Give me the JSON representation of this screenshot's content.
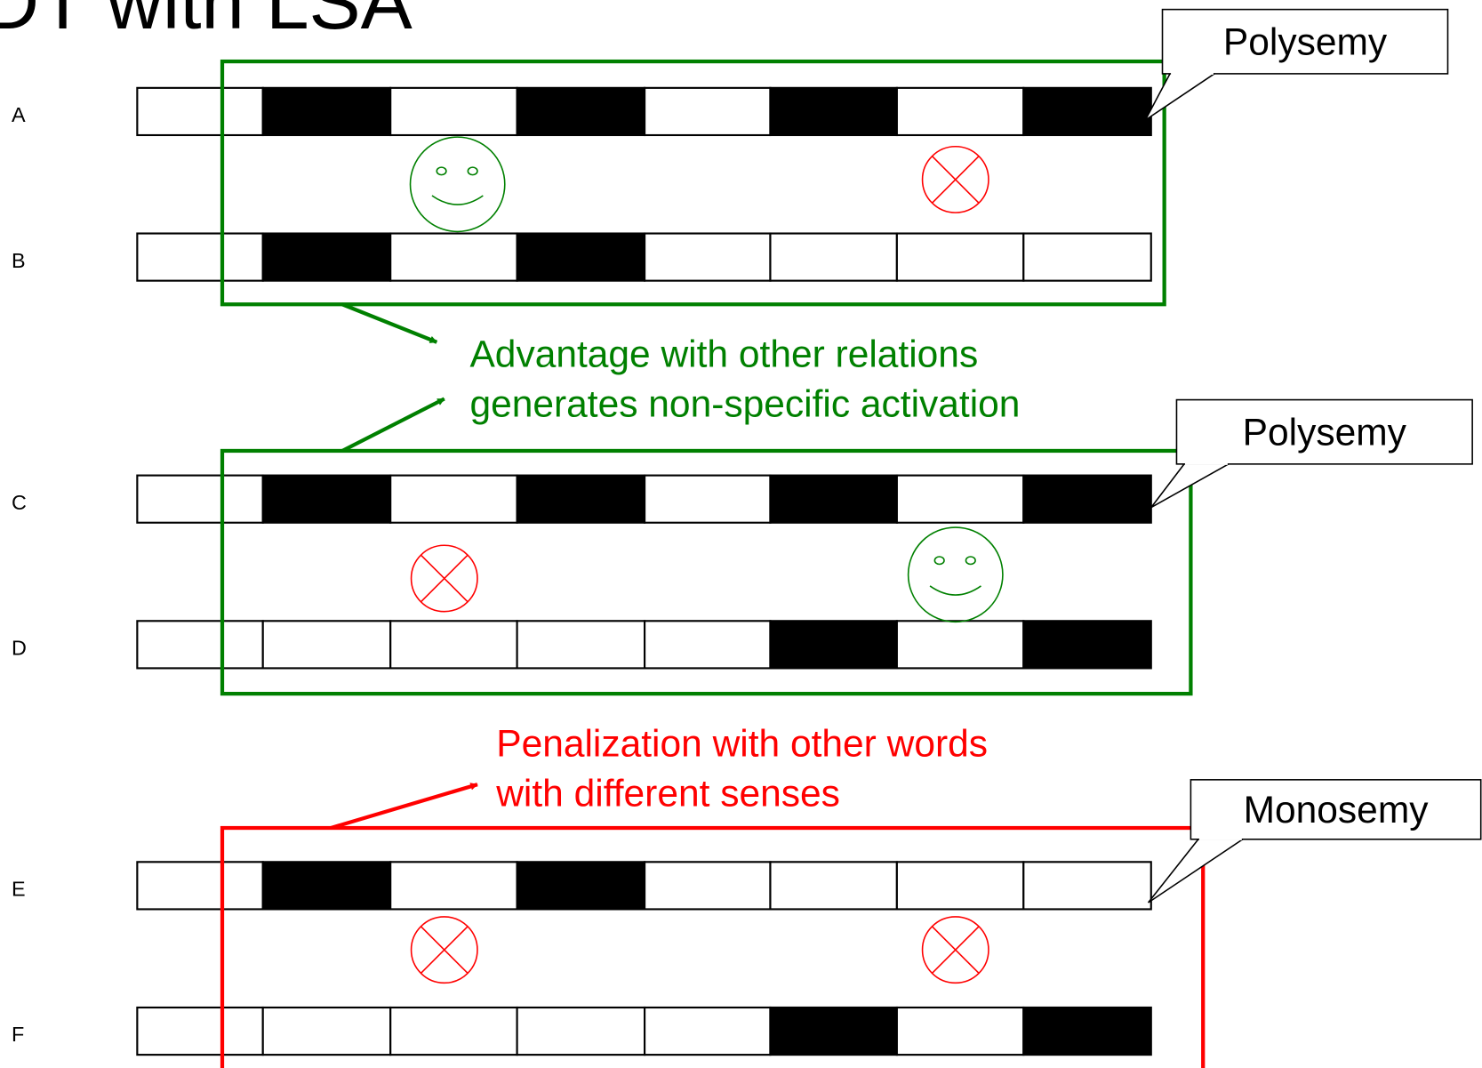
{
  "title": "DT with LSA",
  "rows": [
    "A",
    "B",
    "C",
    "D",
    "E",
    "F"
  ],
  "callouts": [
    "Polysemy",
    "Polysemy",
    "Monosemy"
  ],
  "advantage": [
    "Advantage with other relations",
    "generates non-specific activation"
  ],
  "penalization": [
    "Penalization with other words",
    "with different senses"
  ]
}
